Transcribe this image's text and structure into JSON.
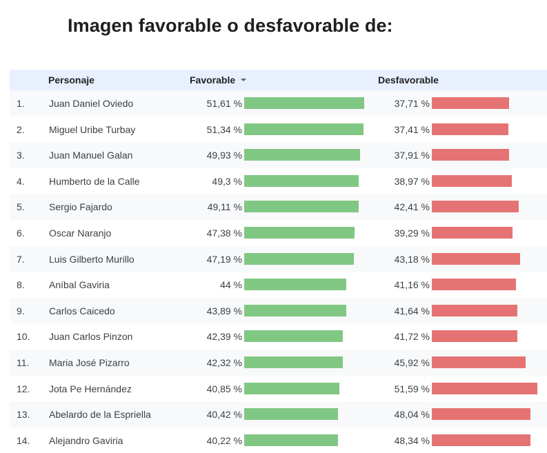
{
  "title": "Imagen favorable o desfavorable de:",
  "header": {
    "name": "Personaje",
    "favorable": "Favorable",
    "desfavorable": "Desfavorable"
  },
  "colors": {
    "favorable_bar": "#81c784",
    "desfavorable_bar": "#e57373",
    "header_bg": "#e8f0fe"
  },
  "chart_data": {
    "type": "table",
    "title": "Imagen favorable o desfavorable de:",
    "columns": [
      "Personaje",
      "Favorable",
      "Desfavorable"
    ],
    "sorted_by": "Favorable",
    "bar_max": 51.61,
    "rows": [
      {
        "rank": "1.",
        "name": "Juan Daniel Oviedo",
        "favorable": 51.61,
        "favorable_label": "51,61 %",
        "desfavorable": 37.71,
        "desfavorable_label": "37,71 %"
      },
      {
        "rank": "2.",
        "name": "Miguel Uribe Turbay",
        "favorable": 51.34,
        "favorable_label": "51,34 %",
        "desfavorable": 37.41,
        "desfavorable_label": "37,41 %"
      },
      {
        "rank": "3.",
        "name": "Juan Manuel Galan",
        "favorable": 49.93,
        "favorable_label": "49,93 %",
        "desfavorable": 37.91,
        "desfavorable_label": "37,91 %"
      },
      {
        "rank": "4.",
        "name": "Humberto de la Calle",
        "favorable": 49.3,
        "favorable_label": "49,3 %",
        "desfavorable": 38.97,
        "desfavorable_label": "38,97 %"
      },
      {
        "rank": "5.",
        "name": "Sergio Fajardo",
        "favorable": 49.11,
        "favorable_label": "49,11 %",
        "desfavorable": 42.41,
        "desfavorable_label": "42,41 %"
      },
      {
        "rank": "6.",
        "name": "Oscar Naranjo",
        "favorable": 47.38,
        "favorable_label": "47,38 %",
        "desfavorable": 39.29,
        "desfavorable_label": "39,29 %"
      },
      {
        "rank": "7.",
        "name": "Luis Gilberto Murillo",
        "favorable": 47.19,
        "favorable_label": "47,19 %",
        "desfavorable": 43.18,
        "desfavorable_label": "43,18 %"
      },
      {
        "rank": "8.",
        "name": "Aníbal Gaviria",
        "favorable": 44,
        "favorable_label": "44 %",
        "desfavorable": 41.16,
        "desfavorable_label": "41,16 %"
      },
      {
        "rank": "9.",
        "name": "Carlos Caicedo",
        "favorable": 43.89,
        "favorable_label": "43,89 %",
        "desfavorable": 41.64,
        "desfavorable_label": "41,64 %"
      },
      {
        "rank": "10.",
        "name": "Juan Carlos Pinzon",
        "favorable": 42.39,
        "favorable_label": "42,39 %",
        "desfavorable": 41.72,
        "desfavorable_label": "41,72 %"
      },
      {
        "rank": "11.",
        "name": "Maria José Pizarro",
        "favorable": 42.32,
        "favorable_label": "42,32 %",
        "desfavorable": 45.92,
        "desfavorable_label": "45,92 %"
      },
      {
        "rank": "12.",
        "name": "Jota Pe Hernández",
        "favorable": 40.85,
        "favorable_label": "40,85 %",
        "desfavorable": 51.59,
        "desfavorable_label": "51,59 %"
      },
      {
        "rank": "13.",
        "name": "Abelardo de la Espriella",
        "favorable": 40.42,
        "favorable_label": "40,42 %",
        "desfavorable": 48.04,
        "desfavorable_label": "48,04 %"
      },
      {
        "rank": "14.",
        "name": "Alejandro Gaviria",
        "favorable": 40.22,
        "favorable_label": "40,22 %",
        "desfavorable": 48.34,
        "desfavorable_label": "48,34 %"
      }
    ]
  }
}
